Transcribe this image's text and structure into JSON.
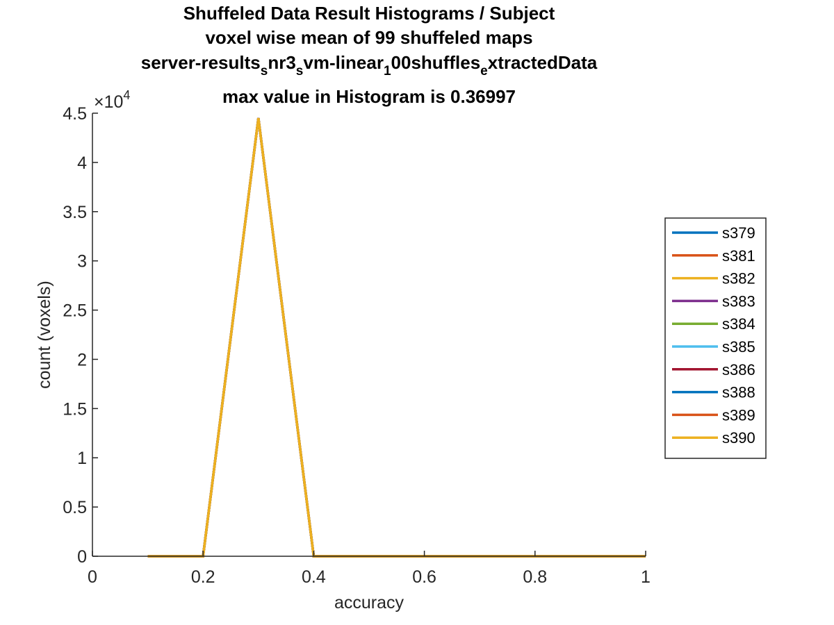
{
  "chart_data": {
    "type": "line",
    "title_lines": [
      "Shuffeled Data Result Histograms / Subject",
      "voxel wise mean of 99 shuffeled maps",
      {
        "segments": [
          {
            "text": "server-results",
            "sub": false
          },
          {
            "text": "s",
            "sub": true
          },
          {
            "text": "nr3",
            "sub": false
          },
          {
            "text": "s",
            "sub": true
          },
          {
            "text": "vm-linear",
            "sub": false
          },
          {
            "text": "1",
            "sub": true
          },
          {
            "text": "00shuffles",
            "sub": false
          },
          {
            "text": "e",
            "sub": true
          },
          {
            "text": "xtractedData",
            "sub": false
          }
        ]
      },
      "max value in Histogram is 0.36997"
    ],
    "xlabel": "accuracy",
    "ylabel": "count (voxels)",
    "xlim": [
      0,
      1
    ],
    "ylim": [
      0,
      45000
    ],
    "xticks": [
      0,
      0.2,
      0.4,
      0.6,
      0.8,
      1
    ],
    "xtick_labels": [
      "0",
      "0.2",
      "0.4",
      "0.6",
      "0.8",
      "1"
    ],
    "yticks": [
      0,
      5000,
      10000,
      15000,
      20000,
      25000,
      30000,
      35000,
      40000,
      45000
    ],
    "ytick_labels": [
      "0",
      "0.5",
      "1",
      "1.5",
      "2",
      "2.5",
      "3",
      "3.5",
      "4",
      "4.5"
    ],
    "y_exponent": {
      "base": "×10",
      "power": "4"
    },
    "grid": false,
    "legend_position": "right",
    "x": [
      0.1,
      0.2,
      0.3,
      0.4,
      0.5,
      0.6,
      0.7,
      0.8,
      0.9,
      1.0
    ],
    "series": [
      {
        "name": "s379",
        "color": "#0072BD",
        "values": [
          0,
          0,
          44500,
          0,
          0,
          0,
          0,
          0,
          0,
          0
        ]
      },
      {
        "name": "s381",
        "color": "#D95319",
        "values": [
          0,
          0,
          44500,
          0,
          0,
          0,
          0,
          0,
          0,
          0
        ]
      },
      {
        "name": "s382",
        "color": "#EDB120",
        "values": [
          0,
          0,
          44500,
          0,
          0,
          0,
          0,
          0,
          0,
          0
        ]
      },
      {
        "name": "s383",
        "color": "#7E2F8E",
        "values": [
          0,
          0,
          44500,
          0,
          0,
          0,
          0,
          0,
          0,
          0
        ]
      },
      {
        "name": "s384",
        "color": "#77AC30",
        "values": [
          0,
          0,
          44500,
          0,
          0,
          0,
          0,
          0,
          0,
          0
        ]
      },
      {
        "name": "s385",
        "color": "#4DBEEE",
        "values": [
          0,
          0,
          44500,
          0,
          0,
          0,
          0,
          0,
          0,
          0
        ]
      },
      {
        "name": "s386",
        "color": "#A2142F",
        "values": [
          0,
          0,
          44500,
          0,
          0,
          0,
          0,
          0,
          0,
          0
        ]
      },
      {
        "name": "s388",
        "color": "#0072BD",
        "values": [
          0,
          0,
          44500,
          0,
          0,
          0,
          0,
          0,
          0,
          0
        ]
      },
      {
        "name": "s389",
        "color": "#D95319",
        "values": [
          0,
          0,
          44500,
          0,
          0,
          0,
          0,
          0,
          0,
          0
        ]
      },
      {
        "name": "s390",
        "color": "#EDB120",
        "values": [
          0,
          0,
          44500,
          0,
          0,
          0,
          0,
          0,
          0,
          0
        ]
      }
    ]
  }
}
